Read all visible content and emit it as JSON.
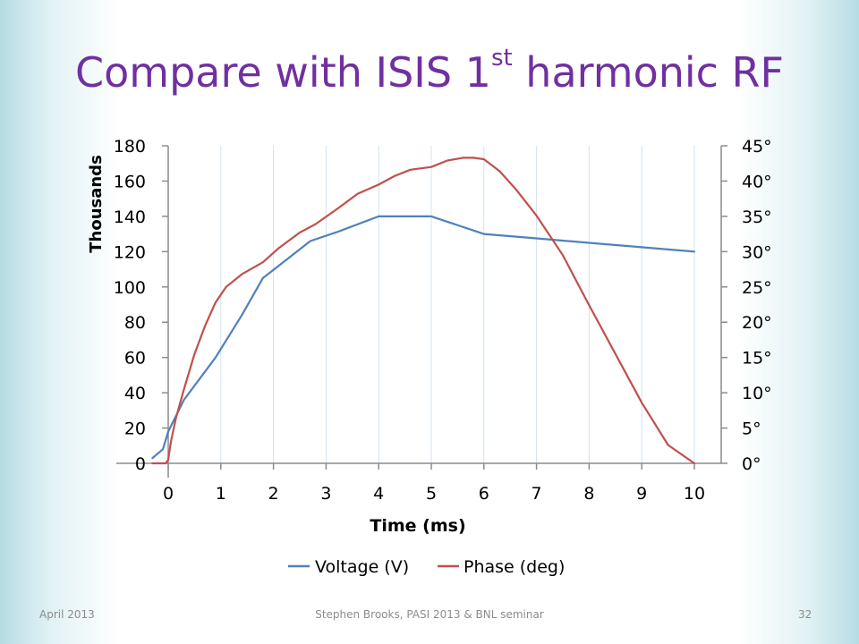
{
  "slide": {
    "title_main": "Compare with ISIS 1",
    "title_sup": "st",
    "title_rest": " harmonic RF"
  },
  "footer": {
    "date": "April 2013",
    "center": "Stephen Brooks, PASI 2013 & BNL seminar",
    "page": "32"
  },
  "chart_data": {
    "type": "line",
    "xlabel": "Time (ms)",
    "ylabel": "Thousands",
    "xlim": [
      -0.35,
      10.5
    ],
    "ylim": [
      0,
      180
    ],
    "y2lim": [
      0,
      45
    ],
    "x_ticks": [
      0,
      1,
      2,
      3,
      4,
      5,
      6,
      7,
      8,
      9,
      10
    ],
    "y_ticks": [
      0,
      20,
      40,
      60,
      80,
      100,
      120,
      140,
      160,
      180
    ],
    "y2_ticks": [
      "0°",
      "5°",
      "10°",
      "15°",
      "20°",
      "25°",
      "30°",
      "35°",
      "40°",
      "45°"
    ],
    "grid": "vertical",
    "legend_position": "bottom",
    "colors": {
      "voltage": "#4f81bd",
      "phase": "#c0504d"
    },
    "series": [
      {
        "name": "Voltage (V)",
        "axis": "left",
        "x": [
          -0.3,
          -0.1,
          0,
          0.3,
          0.9,
          1.4,
          1.8,
          2.1,
          2.7,
          3.2,
          4.0,
          5.0,
          6.0,
          7.0,
          8.0,
          9.0,
          10.0
        ],
        "y": [
          3,
          8,
          18,
          36,
          60,
          84,
          105,
          112,
          126,
          131,
          140,
          140,
          130,
          127.5,
          125,
          122.5,
          120
        ]
      },
      {
        "name": "Phase (deg)",
        "axis": "right",
        "x": [
          -0.3,
          -0.05,
          0,
          0.05,
          0.15,
          0.3,
          0.5,
          0.7,
          0.9,
          1.1,
          1.4,
          1.8,
          2.1,
          2.5,
          2.8,
          3.2,
          3.6,
          4.0,
          4.3,
          4.6,
          5.0,
          5.3,
          5.6,
          5.8,
          6.0,
          6.3,
          6.6,
          7.0,
          7.5,
          8.0,
          8.5,
          9.0,
          9.5,
          10.0
        ],
        "y": [
          0,
          0,
          0.5,
          3,
          6.5,
          10.5,
          15.5,
          19.5,
          22.8,
          25,
          26.8,
          28.5,
          30.5,
          32.7,
          33.9,
          36,
          38.2,
          39.5,
          40.7,
          41.6,
          42,
          42.9,
          43.3,
          43.3,
          43.1,
          41.4,
          38.9,
          35.1,
          29.5,
          22.4,
          15.5,
          8.6,
          2.6,
          0
        ]
      }
    ]
  }
}
